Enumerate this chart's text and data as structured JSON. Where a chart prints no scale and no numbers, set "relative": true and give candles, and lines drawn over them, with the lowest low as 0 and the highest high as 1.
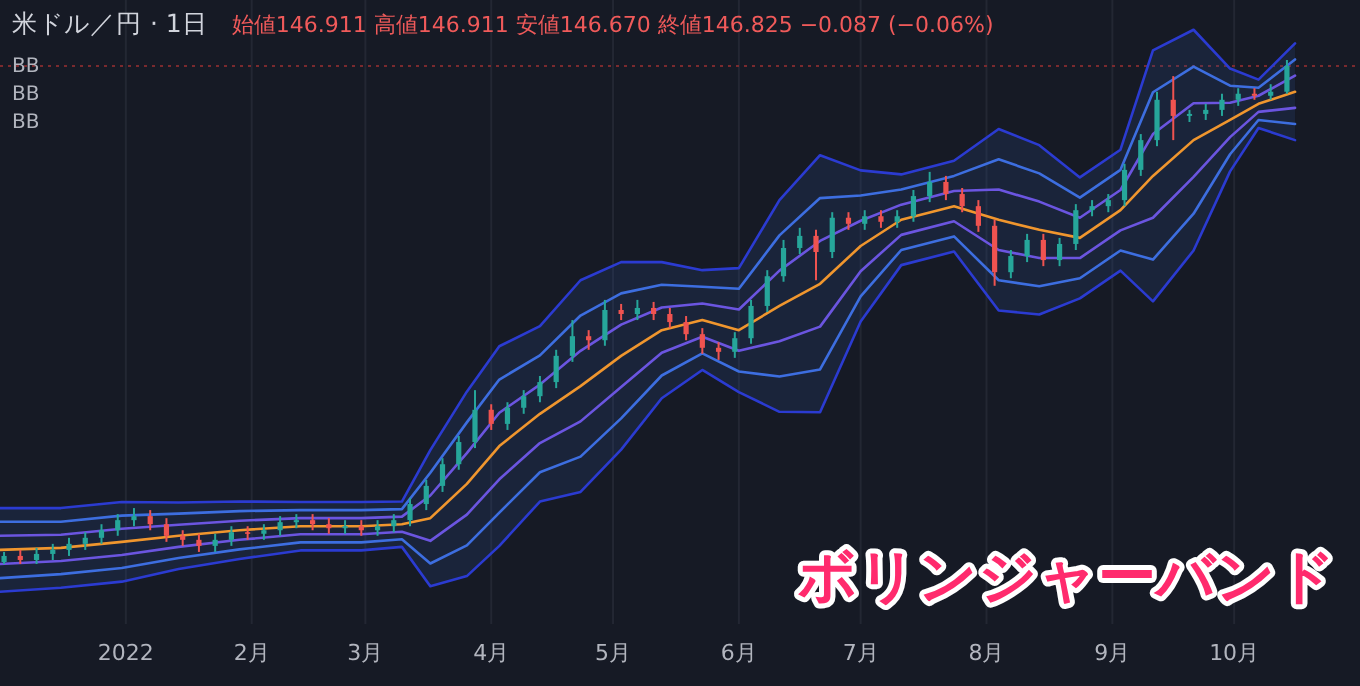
{
  "chart_data": {
    "type": "candlestick",
    "title": "米ドル／円 · 1日",
    "subtitle": "始値146.911 高値146.911 安値146.670 終値146.825 −0.087 (−0.06%)",
    "annotations": [
      "BB",
      "BB",
      "BB",
      "ボリンジャーバンド"
    ],
    "relative": true,
    "grid": "x",
    "xlim": [
      "2021-12-01",
      "2022-11-01"
    ],
    "xticks": [
      {
        "value": "2022-01-01",
        "label": "2022"
      },
      {
        "value": "2022-02-01",
        "label": "2月"
      },
      {
        "value": "2022-03-01",
        "label": "3月"
      },
      {
        "value": "2022-04-01",
        "label": "4月"
      },
      {
        "value": "2022-05-01",
        "label": "5月"
      },
      {
        "value": "2022-06-01",
        "label": "6月"
      },
      {
        "value": "2022-07-01",
        "label": "7月"
      },
      {
        "value": "2022-08-01",
        "label": "8月"
      },
      {
        "value": "2022-09-01",
        "label": "9月"
      },
      {
        "value": "2022-10-01",
        "label": "10月"
      }
    ],
    "ref_lines": [
      {
        "axis": "y",
        "value": 0.988,
        "color": "#7a2a2e",
        "line_style": "dotted"
      }
    ],
    "x": [
      "2021-12-02",
      "2021-12-06",
      "2021-12-10",
      "2021-12-14",
      "2021-12-18",
      "2021-12-22",
      "2021-12-26",
      "2021-12-30",
      "2022-01-03",
      "2022-01-07",
      "2022-01-11",
      "2022-01-15",
      "2022-01-19",
      "2022-01-23",
      "2022-01-27",
      "2022-01-31",
      "2022-02-04",
      "2022-02-08",
      "2022-02-12",
      "2022-02-16",
      "2022-02-20",
      "2022-02-24",
      "2022-02-28",
      "2022-03-04",
      "2022-03-08",
      "2022-03-12",
      "2022-03-16",
      "2022-03-20",
      "2022-03-24",
      "2022-03-28",
      "2022-04-01",
      "2022-04-05",
      "2022-04-09",
      "2022-04-13",
      "2022-04-17",
      "2022-04-21",
      "2022-04-25",
      "2022-04-29",
      "2022-05-03",
      "2022-05-07",
      "2022-05-11",
      "2022-05-15",
      "2022-05-19",
      "2022-05-23",
      "2022-05-27",
      "2022-05-31",
      "2022-06-04",
      "2022-06-08",
      "2022-06-12",
      "2022-06-16",
      "2022-06-20",
      "2022-06-24",
      "2022-06-28",
      "2022-07-02",
      "2022-07-06",
      "2022-07-10",
      "2022-07-14",
      "2022-07-18",
      "2022-07-22",
      "2022-07-26",
      "2022-07-30",
      "2022-08-03",
      "2022-08-07",
      "2022-08-11",
      "2022-08-15",
      "2022-08-19",
      "2022-08-23",
      "2022-08-27",
      "2022-08-31",
      "2022-09-04",
      "2022-09-08",
      "2022-09-12",
      "2022-09-16",
      "2022-09-20",
      "2022-09-24",
      "2022-09-28",
      "2022-10-02",
      "2022-10-06",
      "2022-10-10",
      "2022-10-14"
    ],
    "ohlc": [
      [
        0.004,
        0.024,
        0,
        0.016
      ],
      [
        0.016,
        0.028,
        0,
        0.008
      ],
      [
        0.008,
        0.032,
        0,
        0.02
      ],
      [
        0.02,
        0.04,
        0.008,
        0.028
      ],
      [
        0.028,
        0.052,
        0.016,
        0.04
      ],
      [
        0.04,
        0.063,
        0.028,
        0.052
      ],
      [
        0.052,
        0.079,
        0.04,
        0.067
      ],
      [
        0.067,
        0.099,
        0.056,
        0.087
      ],
      [
        0.087,
        0.111,
        0.075,
        0.095
      ],
      [
        0.095,
        0.107,
        0.067,
        0.079
      ],
      [
        0.079,
        0.091,
        0.044,
        0.056
      ],
      [
        0.056,
        0.067,
        0.036,
        0.048
      ],
      [
        0.048,
        0.06,
        0.024,
        0.036
      ],
      [
        0.036,
        0.06,
        0.024,
        0.048
      ],
      [
        0.048,
        0.075,
        0.036,
        0.063
      ],
      [
        0.063,
        0.075,
        0.048,
        0.06
      ],
      [
        0.06,
        0.079,
        0.048,
        0.067
      ],
      [
        0.067,
        0.095,
        0.056,
        0.083
      ],
      [
        0.083,
        0.099,
        0.071,
        0.087
      ],
      [
        0.087,
        0.099,
        0.067,
        0.079
      ],
      [
        0.079,
        0.091,
        0.06,
        0.071
      ],
      [
        0.071,
        0.087,
        0.06,
        0.075
      ],
      [
        0.075,
        0.087,
        0.056,
        0.067
      ],
      [
        0.067,
        0.087,
        0.056,
        0.075
      ],
      [
        0.075,
        0.099,
        0.063,
        0.087
      ],
      [
        0.087,
        0.131,
        0.075,
        0.119
      ],
      [
        0.119,
        0.167,
        0.107,
        0.155
      ],
      [
        0.155,
        0.21,
        0.143,
        0.198
      ],
      [
        0.198,
        0.254,
        0.187,
        0.242
      ],
      [
        0.242,
        0.345,
        0.23,
        0.306
      ],
      [
        0.306,
        0.317,
        0.266,
        0.278
      ],
      [
        0.278,
        0.321,
        0.266,
        0.31
      ],
      [
        0.31,
        0.345,
        0.298,
        0.333
      ],
      [
        0.333,
        0.373,
        0.321,
        0.361
      ],
      [
        0.361,
        0.425,
        0.349,
        0.413
      ],
      [
        0.413,
        0.484,
        0.401,
        0.452
      ],
      [
        0.452,
        0.464,
        0.425,
        0.444
      ],
      [
        0.444,
        0.524,
        0.433,
        0.504
      ],
      [
        0.504,
        0.516,
        0.484,
        0.496
      ],
      [
        0.496,
        0.524,
        0.484,
        0.508
      ],
      [
        0.508,
        0.52,
        0.484,
        0.496
      ],
      [
        0.496,
        0.508,
        0.468,
        0.48
      ],
      [
        0.48,
        0.492,
        0.444,
        0.456
      ],
      [
        0.456,
        0.468,
        0.417,
        0.429
      ],
      [
        0.429,
        0.44,
        0.405,
        0.421
      ],
      [
        0.421,
        0.46,
        0.409,
        0.448
      ],
      [
        0.448,
        0.524,
        0.437,
        0.512
      ],
      [
        0.512,
        0.583,
        0.5,
        0.571
      ],
      [
        0.571,
        0.643,
        0.56,
        0.627
      ],
      [
        0.627,
        0.667,
        0.615,
        0.651
      ],
      [
        0.651,
        0.663,
        0.563,
        0.619
      ],
      [
        0.619,
        0.698,
        0.607,
        0.687
      ],
      [
        0.687,
        0.698,
        0.663,
        0.675
      ],
      [
        0.675,
        0.702,
        0.663,
        0.69
      ],
      [
        0.69,
        0.702,
        0.667,
        0.679
      ],
      [
        0.679,
        0.702,
        0.667,
        0.69
      ],
      [
        0.69,
        0.742,
        0.679,
        0.73
      ],
      [
        0.73,
        0.778,
        0.718,
        0.758
      ],
      [
        0.758,
        0.77,
        0.722,
        0.734
      ],
      [
        0.734,
        0.746,
        0.698,
        0.71
      ],
      [
        0.71,
        0.722,
        0.659,
        0.671
      ],
      [
        0.671,
        0.683,
        0.552,
        0.579
      ],
      [
        0.579,
        0.623,
        0.567,
        0.611
      ],
      [
        0.611,
        0.655,
        0.599,
        0.643
      ],
      [
        0.643,
        0.655,
        0.591,
        0.603
      ],
      [
        0.603,
        0.647,
        0.591,
        0.635
      ],
      [
        0.635,
        0.714,
        0.623,
        0.702
      ],
      [
        0.702,
        0.722,
        0.69,
        0.71
      ],
      [
        0.71,
        0.734,
        0.698,
        0.722
      ],
      [
        0.722,
        0.794,
        0.71,
        0.782
      ],
      [
        0.782,
        0.853,
        0.77,
        0.841
      ],
      [
        0.841,
        0.937,
        0.829,
        0.921
      ],
      [
        0.921,
        0.968,
        0.841,
        0.889
      ],
      [
        0.889,
        0.901,
        0.877,
        0.893
      ],
      [
        0.893,
        0.913,
        0.881,
        0.901
      ],
      [
        0.901,
        0.933,
        0.889,
        0.921
      ],
      [
        0.921,
        0.944,
        0.909,
        0.933
      ],
      [
        0.933,
        0.944,
        0.921,
        0.929
      ],
      [
        0.929,
        0.952,
        0.921,
        0.937
      ],
      [
        0.937,
        1,
        0.933,
        0.988
      ]
    ],
    "series": [
      {
        "type": "line",
        "color": "#2b3bd1",
        "x": [
          "2021-12-01",
          "2021-12-16",
          "2021-12-31",
          "2022-01-14",
          "2022-01-29",
          "2022-02-13",
          "2022-02-28",
          "2022-03-10",
          "2022-03-17",
          "2022-03-26",
          "2022-04-03",
          "2022-04-13",
          "2022-04-23",
          "2022-05-03",
          "2022-05-13",
          "2022-05-23",
          "2022-06-01",
          "2022-06-11",
          "2022-06-21",
          "2022-07-01",
          "2022-07-11",
          "2022-07-24",
          "2022-08-04",
          "2022-08-14",
          "2022-08-24",
          "2022-09-03",
          "2022-09-11",
          "2022-09-21",
          "2022-09-30",
          "2022-10-07",
          "2022-10-16"
        ],
        "values": [
          0.111,
          0.111,
          0.123,
          0.122,
          0.124,
          0.123,
          0.123,
          0.124,
          0.226,
          0.342,
          0.432,
          0.472,
          0.563,
          0.599,
          0.599,
          0.583,
          0.587,
          0.722,
          0.811,
          0.781,
          0.773,
          0.8,
          0.863,
          0.831,
          0.767,
          0.822,
          1.019,
          1.06,
          0.983,
          0.961,
          1.033
        ]
      },
      {
        "type": "line",
        "color": "#3d6ee0",
        "x": [
          "2021-12-01",
          "2021-12-16",
          "2021-12-31",
          "2022-01-14",
          "2022-01-29",
          "2022-02-13",
          "2022-02-28",
          "2022-03-10",
          "2022-03-17",
          "2022-03-26",
          "2022-04-03",
          "2022-04-13",
          "2022-04-23",
          "2022-05-03",
          "2022-05-13",
          "2022-05-23",
          "2022-06-01",
          "2022-06-11",
          "2022-06-21",
          "2022-07-01",
          "2022-07-11",
          "2022-07-24",
          "2022-08-04",
          "2022-08-14",
          "2022-08-24",
          "2022-09-03",
          "2022-09-11",
          "2022-09-21",
          "2022-09-30",
          "2022-10-07",
          "2022-10-16"
        ],
        "values": [
          0.084,
          0.084,
          0.096,
          0.1,
          0.105,
          0.107,
          0.107,
          0.109,
          0.181,
          0.281,
          0.366,
          0.414,
          0.493,
          0.537,
          0.554,
          0.55,
          0.546,
          0.652,
          0.726,
          0.731,
          0.743,
          0.77,
          0.803,
          0.775,
          0.727,
          0.782,
          0.936,
          0.987,
          0.949,
          0.945,
          1.001
        ]
      },
      {
        "type": "line",
        "color": "#6b55e0",
        "x": [
          "2021-12-01",
          "2021-12-16",
          "2021-12-31",
          "2022-01-14",
          "2022-01-29",
          "2022-02-13",
          "2022-02-28",
          "2022-03-10",
          "2022-03-17",
          "2022-03-26",
          "2022-04-03",
          "2022-04-13",
          "2022-04-23",
          "2022-05-03",
          "2022-05-13",
          "2022-05-23",
          "2022-06-01",
          "2022-06-11",
          "2022-06-21",
          "2022-07-01",
          "2022-07-11",
          "2022-07-24",
          "2022-08-04",
          "2022-08-14",
          "2022-08-24",
          "2022-09-03",
          "2022-09-11",
          "2022-09-21",
          "2022-09-30",
          "2022-10-07",
          "2022-10-16"
        ],
        "values": [
          0.056,
          0.058,
          0.07,
          0.078,
          0.086,
          0.091,
          0.091,
          0.094,
          0.136,
          0.22,
          0.3,
          0.356,
          0.423,
          0.475,
          0.509,
          0.517,
          0.505,
          0.582,
          0.641,
          0.681,
          0.713,
          0.74,
          0.743,
          0.719,
          0.687,
          0.742,
          0.853,
          0.914,
          0.915,
          0.929,
          0.969
        ]
      },
      {
        "type": "line",
        "color": "#f0962e",
        "x": [
          "2021-12-01",
          "2021-12-16",
          "2021-12-31",
          "2022-01-14",
          "2022-01-29",
          "2022-02-13",
          "2022-02-28",
          "2022-03-10",
          "2022-03-17",
          "2022-03-26",
          "2022-04-03",
          "2022-04-13",
          "2022-04-23",
          "2022-05-03",
          "2022-05-13",
          "2022-05-23",
          "2022-06-01",
          "2022-06-11",
          "2022-06-21",
          "2022-07-01",
          "2022-07-11",
          "2022-07-24",
          "2022-08-04",
          "2022-08-14",
          "2022-08-24",
          "2022-09-03",
          "2022-09-11",
          "2022-09-21",
          "2022-09-30",
          "2022-10-07",
          "2022-10-16"
        ],
        "values": [
          0.028,
          0.032,
          0.044,
          0.056,
          0.067,
          0.075,
          0.075,
          0.079,
          0.091,
          0.159,
          0.234,
          0.298,
          0.353,
          0.413,
          0.464,
          0.484,
          0.464,
          0.512,
          0.556,
          0.631,
          0.683,
          0.71,
          0.683,
          0.663,
          0.647,
          0.702,
          0.77,
          0.841,
          0.881,
          0.913,
          0.937
        ]
      },
      {
        "type": "line",
        "color": "#6b55e0",
        "x": [
          "2021-12-01",
          "2021-12-16",
          "2021-12-31",
          "2022-01-14",
          "2022-01-29",
          "2022-02-13",
          "2022-02-28",
          "2022-03-10",
          "2022-03-17",
          "2022-03-26",
          "2022-04-03",
          "2022-04-13",
          "2022-04-23",
          "2022-05-03",
          "2022-05-13",
          "2022-05-23",
          "2022-06-01",
          "2022-06-11",
          "2022-06-21",
          "2022-07-01",
          "2022-07-11",
          "2022-07-24",
          "2022-08-04",
          "2022-08-14",
          "2022-08-24",
          "2022-09-03",
          "2022-09-11",
          "2022-09-21",
          "2022-09-30",
          "2022-10-07",
          "2022-10-16"
        ],
        "values": [
          0.0,
          0.006,
          0.018,
          0.034,
          0.048,
          0.059,
          0.059,
          0.064,
          0.046,
          0.098,
          0.168,
          0.24,
          0.283,
          0.351,
          0.419,
          0.451,
          0.423,
          0.442,
          0.471,
          0.581,
          0.653,
          0.68,
          0.623,
          0.607,
          0.607,
          0.662,
          0.687,
          0.768,
          0.847,
          0.897,
          0.905
        ]
      },
      {
        "type": "line",
        "color": "#3d6ee0",
        "x": [
          "2021-12-01",
          "2021-12-16",
          "2021-12-31",
          "2022-01-14",
          "2022-01-29",
          "2022-02-13",
          "2022-02-28",
          "2022-03-10",
          "2022-03-17",
          "2022-03-26",
          "2022-04-03",
          "2022-04-13",
          "2022-04-23",
          "2022-05-03",
          "2022-05-13",
          "2022-05-23",
          "2022-06-01",
          "2022-06-11",
          "2022-06-21",
          "2022-07-01",
          "2022-07-11",
          "2022-07-24",
          "2022-08-04",
          "2022-08-14",
          "2022-08-24",
          "2022-09-03",
          "2022-09-11",
          "2022-09-21",
          "2022-09-30",
          "2022-10-07",
          "2022-10-16"
        ],
        "values": [
          -0.028,
          -0.02,
          -0.008,
          0.012,
          0.029,
          0.043,
          0.043,
          0.049,
          0.001,
          0.037,
          0.102,
          0.182,
          0.213,
          0.289,
          0.374,
          0.418,
          0.382,
          0.372,
          0.386,
          0.531,
          0.623,
          0.65,
          0.563,
          0.551,
          0.567,
          0.622,
          0.604,
          0.695,
          0.813,
          0.881,
          0.873
        ]
      },
      {
        "type": "line",
        "color": "#2b3bd1",
        "x": [
          "2021-12-01",
          "2021-12-16",
          "2021-12-31",
          "2022-01-14",
          "2022-01-29",
          "2022-02-13",
          "2022-02-28",
          "2022-03-10",
          "2022-03-17",
          "2022-03-26",
          "2022-04-03",
          "2022-04-13",
          "2022-04-23",
          "2022-05-03",
          "2022-05-13",
          "2022-05-23",
          "2022-06-01",
          "2022-06-11",
          "2022-06-21",
          "2022-07-01",
          "2022-07-11",
          "2022-07-24",
          "2022-08-04",
          "2022-08-14",
          "2022-08-24",
          "2022-09-03",
          "2022-09-11",
          "2022-09-21",
          "2022-09-30",
          "2022-10-07",
          "2022-10-16"
        ],
        "values": [
          -0.055,
          -0.047,
          -0.035,
          -0.01,
          0.01,
          0.027,
          0.027,
          0.034,
          -0.044,
          -0.024,
          0.036,
          0.124,
          0.143,
          0.227,
          0.329,
          0.385,
          0.341,
          0.302,
          0.301,
          0.481,
          0.593,
          0.62,
          0.503,
          0.495,
          0.527,
          0.582,
          0.521,
          0.622,
          0.779,
          0.865,
          0.841
        ]
      }
    ]
  }
}
